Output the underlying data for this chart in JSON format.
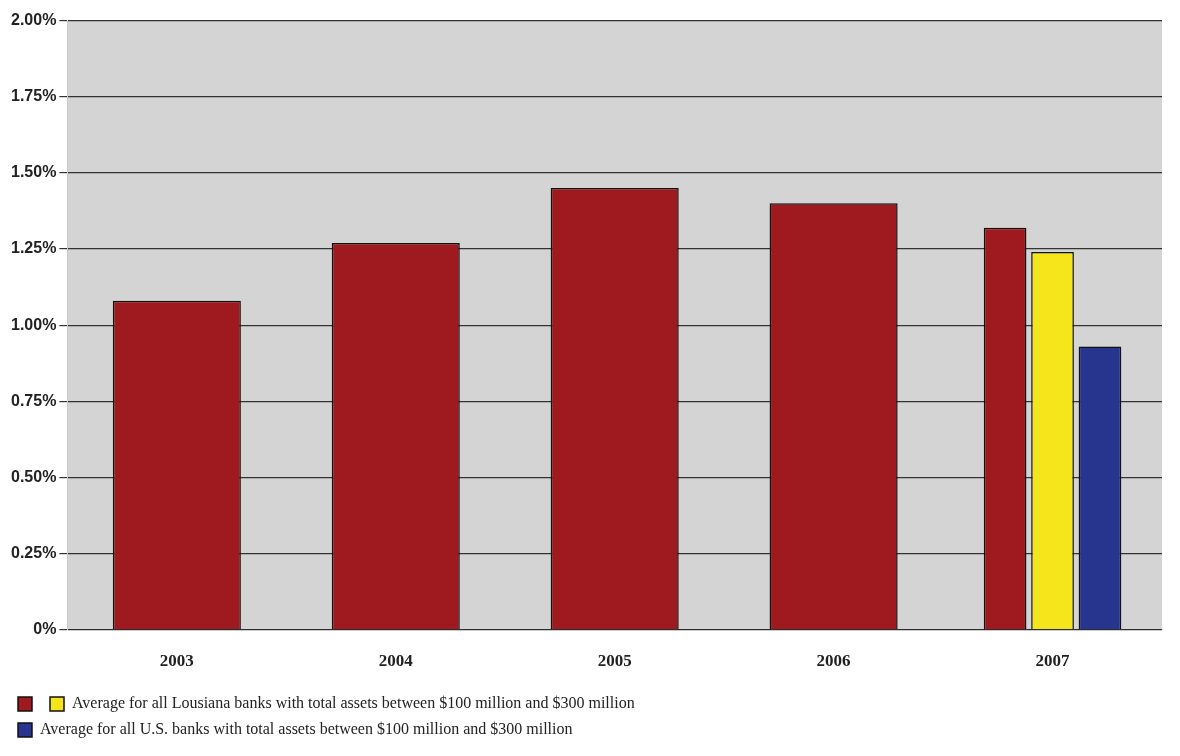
{
  "chart_data": {
    "type": "bar",
    "categories": [
      "2003",
      "2004",
      "2005",
      "2006",
      "2007"
    ],
    "series": [
      {
        "color": "#9e1a1e",
        "values": [
          1.08,
          1.27,
          1.45,
          1.4,
          1.32
        ]
      },
      {
        "name": "Average for all Lousiana banks with total assets between $100 million and $300 million",
        "color": "#f5e61c",
        "values": [
          null,
          null,
          null,
          null,
          1.24
        ]
      },
      {
        "name": "Average for all U.S. banks with total assets between $100 million and $300 million",
        "color": "#27358f",
        "values": [
          null,
          null,
          null,
          null,
          0.93
        ]
      }
    ],
    "ylim": [
      0,
      2
    ],
    "yticks": [
      {
        "value": 0,
        "label": "0%"
      },
      {
        "value": 0.25,
        "label": "0.25%"
      },
      {
        "value": 0.5,
        "label": "0.50%"
      },
      {
        "value": 0.75,
        "label": "0.75%"
      },
      {
        "value": 1,
        "label": "1.00%"
      },
      {
        "value": 1.25,
        "label": "1.25%"
      },
      {
        "value": 1.5,
        "label": "1.50%"
      },
      {
        "value": 1.75,
        "label": "1.75%"
      },
      {
        "value": 2,
        "label": "2.00%"
      }
    ],
    "grid": "y",
    "legend": "bottom"
  }
}
